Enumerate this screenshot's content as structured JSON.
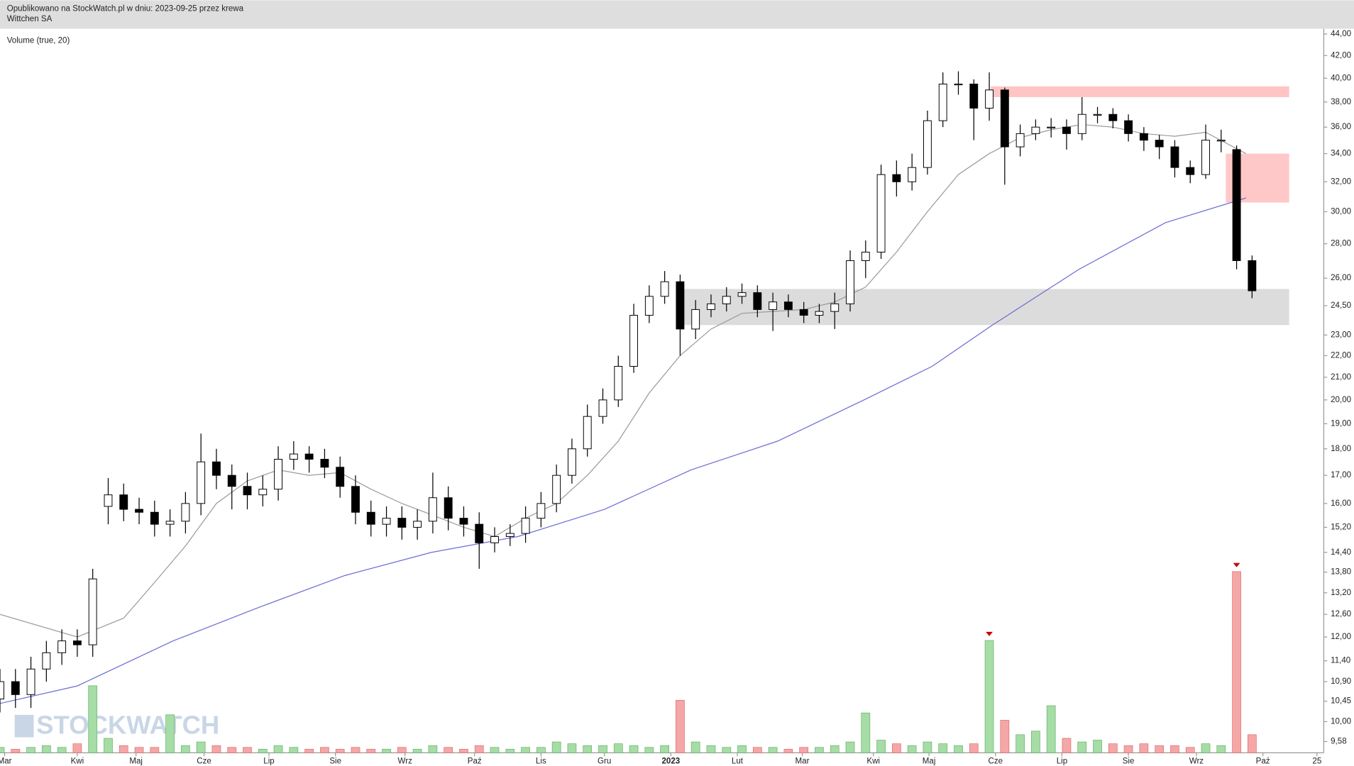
{
  "chart_data": {
    "type": "candlestick",
    "subtitle": "Opublikowano na StockWatch.pl w dniu: 2023-09-25 przez krewa",
    "title": "Wittchen SA",
    "indicator_label": "Volume (true, 20)",
    "watermark": "STOCKWATCH",
    "log_scale": true,
    "x": [
      0,
      1,
      2,
      3,
      4,
      5,
      6,
      7,
      8,
      9,
      10,
      11,
      12,
      13,
      14,
      15,
      16,
      17,
      18,
      19,
      20,
      21,
      22,
      23,
      24,
      25,
      26,
      27,
      28,
      29,
      30,
      31,
      32,
      33,
      34,
      35,
      36,
      37,
      38,
      39,
      40,
      41,
      42,
      43,
      44,
      45,
      46,
      47,
      48,
      49,
      50,
      51,
      52,
      53,
      54,
      55,
      56,
      57,
      58,
      59,
      60,
      61,
      62,
      63,
      64,
      65,
      66,
      67,
      68,
      69,
      70,
      71,
      72,
      73,
      74,
      75,
      76,
      77,
      78,
      79,
      80,
      81
    ],
    "open": [
      10.5,
      10.9,
      10.6,
      11.2,
      11.6,
      11.9,
      11.8,
      15.9,
      16.3,
      15.8,
      15.7,
      15.3,
      15.4,
      16.0,
      17.5,
      17.0,
      16.6,
      16.3,
      16.5,
      17.6,
      17.8,
      17.6,
      17.3,
      16.6,
      15.7,
      15.3,
      15.5,
      15.2,
      15.4,
      16.2,
      15.5,
      15.3,
      14.7,
      14.9,
      15.0,
      15.5,
      16.0,
      17.0,
      18.0,
      19.3,
      20.0,
      21.5,
      24.0,
      25.0,
      25.8,
      23.3,
      24.3,
      24.6,
      25.0,
      25.2,
      24.3,
      24.7,
      24.3,
      24.0,
      24.2,
      24.6,
      27.0,
      27.5,
      32.5,
      32.0,
      33.0,
      36.5,
      39.5,
      39.5,
      37.5,
      39.0,
      34.5,
      35.5,
      36.0,
      36.0,
      35.5,
      37.0,
      37.0,
      36.5,
      35.5,
      35.0,
      34.5,
      33.0,
      32.5,
      35.0,
      34.3,
      27.0
    ],
    "high": [
      11.2,
      11.2,
      11.5,
      11.9,
      12.2,
      12.2,
      13.9,
      16.9,
      16.7,
      16.2,
      16.1,
      15.8,
      16.4,
      18.6,
      18.0,
      17.4,
      17.1,
      17.0,
      18.1,
      18.3,
      18.1,
      18.0,
      17.7,
      17.0,
      16.1,
      15.9,
      15.9,
      15.8,
      17.1,
      16.6,
      15.9,
      15.7,
      15.2,
      15.3,
      15.9,
      16.4,
      17.4,
      18.4,
      19.8,
      20.5,
      22.0,
      24.6,
      25.6,
      26.4,
      26.2,
      24.8,
      25.1,
      25.5,
      25.7,
      25.6,
      25.2,
      25.1,
      24.7,
      24.6,
      25.2,
      27.6,
      28.2,
      33.2,
      33.5,
      34.0,
      37.3,
      40.5,
      40.6,
      39.9,
      40.5,
      39.2,
      36.2,
      36.6,
      36.7,
      36.6,
      38.4,
      37.6,
      37.5,
      37.0,
      36.0,
      35.4,
      35.0,
      33.5,
      36.2,
      35.8,
      34.6,
      27.3
    ],
    "low": [
      10.2,
      10.3,
      10.3,
      10.9,
      11.3,
      11.5,
      11.5,
      15.3,
      15.4,
      15.3,
      14.9,
      14.9,
      15.0,
      15.6,
      16.5,
      15.8,
      15.8,
      15.9,
      16.1,
      17.2,
      17.1,
      16.9,
      16.2,
      15.3,
      14.9,
      14.9,
      14.8,
      14.8,
      15.0,
      15.1,
      14.9,
      13.9,
      14.4,
      14.6,
      14.7,
      15.2,
      15.7,
      16.7,
      17.7,
      19.0,
      19.7,
      21.2,
      23.6,
      24.6,
      22.0,
      22.8,
      23.9,
      24.2,
      24.6,
      23.9,
      23.2,
      23.9,
      23.6,
      23.6,
      23.3,
      24.2,
      26.0,
      27.1,
      31.0,
      31.4,
      32.5,
      36.0,
      38.6,
      35.0,
      36.5,
      31.8,
      33.8,
      35.0,
      35.2,
      34.3,
      35.0,
      36.3,
      35.9,
      34.9,
      34.2,
      33.6,
      32.3,
      31.9,
      32.2,
      34.1,
      26.5,
      24.9
    ],
    "close": [
      10.9,
      10.6,
      11.2,
      11.6,
      11.9,
      11.8,
      13.6,
      16.3,
      15.8,
      15.7,
      15.3,
      15.4,
      16.0,
      17.5,
      17.0,
      16.6,
      16.3,
      16.5,
      17.6,
      17.8,
      17.6,
      17.3,
      16.6,
      15.7,
      15.3,
      15.5,
      15.2,
      15.4,
      16.2,
      15.5,
      15.3,
      14.7,
      14.9,
      15.0,
      15.5,
      16.0,
      17.0,
      18.0,
      19.3,
      20.0,
      21.5,
      24.0,
      25.0,
      25.8,
      23.3,
      24.3,
      24.6,
      25.0,
      25.2,
      24.3,
      24.7,
      24.3,
      24.0,
      24.2,
      24.6,
      27.0,
      27.5,
      32.5,
      32.0,
      33.0,
      36.5,
      39.5,
      39.5,
      37.5,
      39.0,
      34.5,
      35.5,
      36.0,
      36.0,
      35.5,
      37.0,
      37.0,
      36.5,
      35.5,
      35.0,
      34.5,
      33.0,
      32.5,
      35.0,
      35.0,
      27.0,
      25.3
    ],
    "xlim": [
      0,
      85.5
    ],
    "xticks": [
      {
        "value": 0.3,
        "label": "Mar"
      },
      {
        "value": 5.0,
        "label": "Kwi"
      },
      {
        "value": 8.8,
        "label": "Maj"
      },
      {
        "value": 13.2,
        "label": "Cze"
      },
      {
        "value": 17.4,
        "label": "Lip"
      },
      {
        "value": 21.7,
        "label": "Sie"
      },
      {
        "value": 26.2,
        "label": "Wrz"
      },
      {
        "value": 30.7,
        "label": "Paź"
      },
      {
        "value": 35.0,
        "label": "Lis"
      },
      {
        "value": 39.1,
        "label": "Gru"
      },
      {
        "value": 43.4,
        "label": "2023"
      },
      {
        "value": 47.7,
        "label": "Lut"
      },
      {
        "value": 51.9,
        "label": "Mar"
      },
      {
        "value": 56.5,
        "label": "Kwi"
      },
      {
        "value": 60.1,
        "label": "Maj"
      },
      {
        "value": 64.4,
        "label": "Cze"
      },
      {
        "value": 68.7,
        "label": "Lip"
      },
      {
        "value": 73.0,
        "label": "Sie"
      },
      {
        "value": 77.4,
        "label": "Wrz"
      },
      {
        "value": 81.7,
        "label": "Paź"
      },
      {
        "value": 85.2,
        "label": "25"
      }
    ],
    "ylim": [
      9.35,
      44.5
    ],
    "yticks": [
      {
        "value": 44,
        "label": "44,00"
      },
      {
        "value": 42,
        "label": "42,00"
      },
      {
        "value": 40,
        "label": "40,00"
      },
      {
        "value": 38,
        "label": "38,00"
      },
      {
        "value": 36,
        "label": "36,00"
      },
      {
        "value": 34,
        "label": "34,00"
      },
      {
        "value": 32,
        "label": "32,00"
      },
      {
        "value": 30,
        "label": "30,00"
      },
      {
        "value": 28,
        "label": "28,00"
      },
      {
        "value": 26,
        "label": "26,00"
      },
      {
        "value": 24.5,
        "label": "24,50"
      },
      {
        "value": 23,
        "label": "23,00"
      },
      {
        "value": 22,
        "label": "22,00"
      },
      {
        "value": 21,
        "label": "21,00"
      },
      {
        "value": 20,
        "label": "20,00"
      },
      {
        "value": 19,
        "label": "19,00"
      },
      {
        "value": 18,
        "label": "18,00"
      },
      {
        "value": 17,
        "label": "17,00"
      },
      {
        "value": 16,
        "label": "16,00"
      },
      {
        "value": 15.2,
        "label": "15,20"
      },
      {
        "value": 14.4,
        "label": "14,40"
      },
      {
        "value": 13.8,
        "label": "13,80"
      },
      {
        "value": 13.2,
        "label": "13,20"
      },
      {
        "value": 12.6,
        "label": "12,60"
      },
      {
        "value": 12,
        "label": "12,00"
      },
      {
        "value": 11.4,
        "label": "11,40"
      },
      {
        "value": 10.9,
        "label": "10,90"
      },
      {
        "value": 10.45,
        "label": "10,45"
      },
      {
        "value": 10,
        "label": "10,00"
      },
      {
        "value": 9.58,
        "label": "9,58"
      }
    ],
    "zones": [
      {
        "color": "#ffc4c4",
        "x": [
          64.1,
          83.4
        ],
        "y": [
          38.4,
          39.3
        ]
      },
      {
        "color": "#ffc8c8",
        "x": [
          79.3,
          83.4
        ],
        "y": [
          30.6,
          34.0
        ]
      },
      {
        "color": "#dcdcdc",
        "x": [
          44.2,
          83.4
        ],
        "y": [
          23.5,
          25.4
        ]
      }
    ],
    "lines": [
      {
        "color": "#9a9a9a",
        "x": [
          0,
          5,
          8,
          10,
          12,
          14,
          16,
          18,
          20,
          22,
          24,
          26,
          28,
          30,
          32,
          34,
          36,
          38,
          40,
          42,
          44,
          46,
          48,
          50,
          52,
          54,
          56,
          58,
          60,
          62,
          64,
          66,
          68,
          70,
          72,
          74,
          76,
          78,
          80.6
        ],
        "values": [
          12.6,
          12.0,
          12.5,
          13.5,
          14.6,
          16.0,
          16.8,
          17.2,
          17.0,
          17.1,
          16.5,
          16.0,
          15.6,
          15.2,
          14.9,
          15.5,
          16.0,
          17.0,
          18.3,
          20.3,
          22.0,
          23.3,
          24.1,
          24.2,
          24.3,
          24.7,
          25.5,
          27.5,
          30.0,
          32.5,
          34.0,
          35.2,
          35.8,
          36.2,
          36.0,
          35.5,
          35.3,
          35.6,
          34.0
        ]
      },
      {
        "color": "#6b6bd6",
        "x": [
          0,
          5.0,
          11.2,
          16.8,
          22.3,
          27.9,
          33.5,
          39.1,
          44.7,
          50.3,
          55.9,
          60.3,
          64.2,
          69.8,
          75.4,
          80.6
        ],
        "values": [
          10.4,
          10.8,
          11.9,
          12.8,
          13.7,
          14.4,
          14.9,
          15.8,
          17.2,
          18.3,
          20.0,
          21.5,
          23.5,
          26.5,
          29.3,
          30.9
        ]
      }
    ],
    "volume": {
      "ylim": [
        0,
        100
      ],
      "up_color": "#a6dca6",
      "down_color": "#f5a6a6",
      "marker_color": "#cc0000",
      "markers": [
        64,
        80
      ],
      "values": [
        3,
        2,
        3,
        4,
        3,
        5,
        37,
        8,
        4,
        3,
        3,
        21,
        4,
        6,
        4,
        3,
        3,
        2,
        4,
        3,
        2,
        3,
        2,
        3,
        2,
        2,
        3,
        2,
        4,
        3,
        2,
        4,
        3,
        2,
        3,
        3,
        6,
        5,
        4,
        4,
        5,
        4,
        3,
        4,
        29,
        6,
        4,
        3,
        4,
        3,
        3,
        2,
        3,
        3,
        4,
        6,
        22,
        7,
        5,
        4,
        6,
        5,
        4,
        5,
        62,
        18,
        10,
        12,
        26,
        8,
        6,
        7,
        5,
        4,
        5,
        4,
        4,
        3,
        5,
        4,
        100,
        10
      ]
    }
  }
}
